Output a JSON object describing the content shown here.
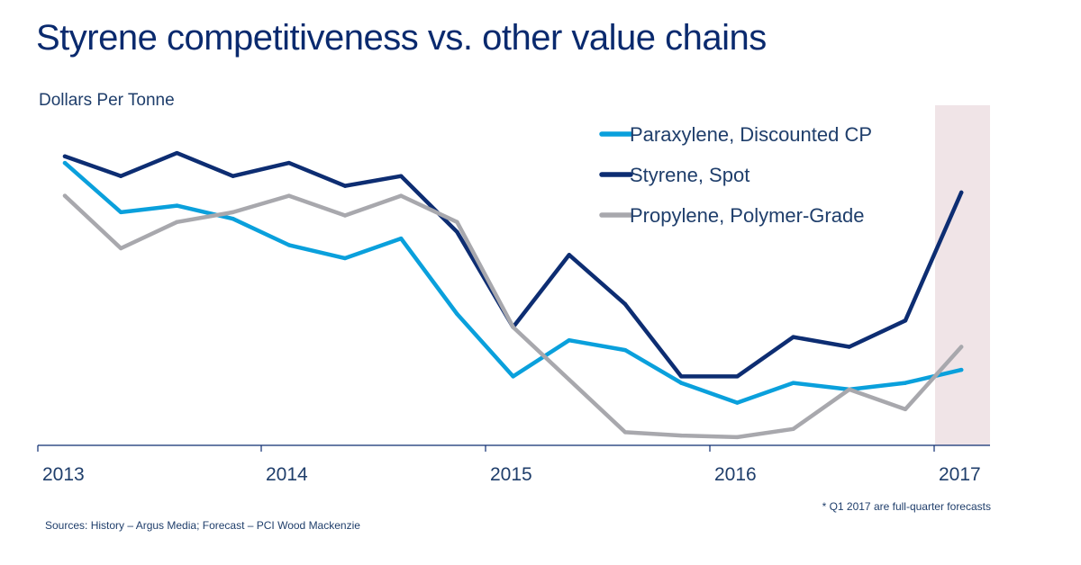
{
  "title": "Styrene competitiveness vs. other value chains",
  "footnote": "* Q1 2017 are full-quarter forecasts",
  "sources": "Sources: History – Argus Media; Forecast – PCI Wood Mackenzie",
  "chart_data": {
    "type": "line",
    "ylabel": "Dollars Per Tonne",
    "xlabel": "",
    "x_ticks": [
      "2013",
      "2014",
      "2015",
      "2016",
      "2017"
    ],
    "x": [
      "2013 Q1",
      "2013 Q2",
      "2013 Q3",
      "2013 Q4",
      "2014 Q1",
      "2014 Q2",
      "2014 Q3",
      "2014 Q4",
      "2015 Q1",
      "2015 Q2",
      "2015 Q3",
      "2015 Q4",
      "2016 Q1",
      "2016 Q2",
      "2016 Q3",
      "2016 Q4",
      "2017 Q1"
    ],
    "ylim": [
      0,
      100
    ],
    "y_axis_values_shown": false,
    "series": [
      {
        "name": "Paraxylene, Discounted CP",
        "color": "#0aa0dc",
        "values": [
          86,
          71,
          73,
          69,
          61,
          57,
          63,
          40,
          21,
          32,
          29,
          19,
          13,
          19,
          17,
          19,
          23
        ]
      },
      {
        "name": "Styrene, Spot",
        "color": "#0d2d72",
        "values": [
          88,
          82,
          89,
          82,
          86,
          79,
          82,
          65,
          36,
          58,
          43,
          21,
          21,
          33,
          30,
          38,
          77
        ]
      },
      {
        "name": "Propylene, Polymer-Grade",
        "color": "#a8a8ad",
        "values": [
          76,
          60,
          68,
          71,
          76,
          70,
          76,
          68,
          36,
          20,
          4,
          3,
          2.5,
          5,
          17,
          11,
          30
        ]
      }
    ],
    "forecast_band": {
      "from": "2017 Q1",
      "color": "#f0e4e7"
    },
    "legend_position": "top-right",
    "grid": false
  }
}
